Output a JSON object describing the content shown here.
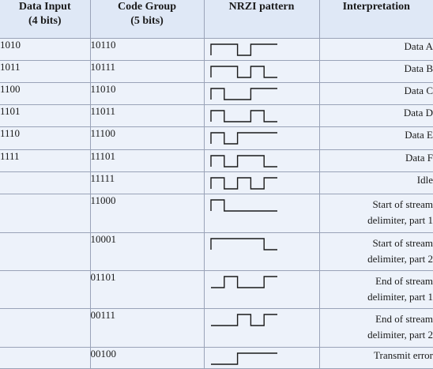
{
  "headers": {
    "data_input": [
      "Data Input",
      "(4 bits)"
    ],
    "code_group": [
      "Code Group",
      "(5 bits)"
    ],
    "nrzi": "NRZI pattern",
    "interpretation": "Interpretation"
  },
  "rows": [
    {
      "input": "1010",
      "code": "10110",
      "interp": [
        "Data A"
      ]
    },
    {
      "input": "1011",
      "code": "10111",
      "interp": [
        "Data B"
      ]
    },
    {
      "input": "1100",
      "code": "11010",
      "interp": [
        "Data C"
      ]
    },
    {
      "input": "1101",
      "code": "11011",
      "interp": [
        "Data D"
      ]
    },
    {
      "input": "1110",
      "code": "11100",
      "interp": [
        "Data E"
      ]
    },
    {
      "input": "1111",
      "code": "11101",
      "interp": [
        "Data F"
      ]
    },
    {
      "input": "",
      "code": "11111",
      "interp": [
        "Idle"
      ]
    },
    {
      "input": "",
      "code": "11000",
      "interp": [
        "Start of stream",
        "delimiter, part 1"
      ]
    },
    {
      "input": "",
      "code": "10001",
      "interp": [
        "Start of stream",
        "delimiter, part 2"
      ]
    },
    {
      "input": "",
      "code": "01101",
      "interp": [
        "End of stream",
        "delimiter, part 1"
      ]
    },
    {
      "input": "",
      "code": "00111",
      "interp": [
        "End of stream",
        "delimiter, part 2"
      ]
    },
    {
      "input": "",
      "code": "00100",
      "interp": [
        "Transmit error"
      ]
    }
  ],
  "colors": {
    "header_bg": "#dfe8f6",
    "row_bg": "#edf2fa",
    "grid": "#9aa3b8",
    "waveform": "#1a1a1a"
  }
}
